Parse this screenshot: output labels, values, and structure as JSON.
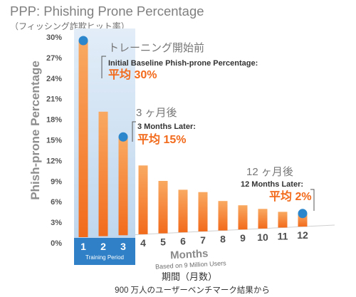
{
  "colors": {
    "bar_top": "#f9a962",
    "bar_bottom": "#f26b1c",
    "marker": "#2b86cc",
    "highlight_value": "#f26a1b",
    "training_band": "#2f80c6",
    "training_shade_top": "#e2edf8",
    "training_shade_bottom": "#bfd7ee"
  },
  "chart_data": {
    "type": "bar",
    "title": "PPP: Phishing Prone Percentage",
    "subtitle": "（フィッシング詐欺ヒット率）",
    "ylabel": "Phish-prone Percentage",
    "xlabel": "Months",
    "xlabel_note": "Based on 9 Million Users",
    "xlabel_ja": "期間（月数）",
    "xlabel_ja_note": "900 万人のユーザーベンチマーク結果から",
    "categories": [
      "1",
      "2",
      "3",
      "4",
      "5",
      "6",
      "7",
      "8",
      "9",
      "10",
      "11",
      "12"
    ],
    "values": [
      30,
      19,
      15,
      10.5,
      8,
      6.5,
      6,
      4.5,
      3.7,
      3,
      2.4,
      2
    ],
    "value_unit": "%",
    "ylim": [
      0,
      30
    ],
    "yticks": [
      0,
      3,
      6,
      9,
      12,
      15,
      18,
      21,
      24,
      27,
      30
    ],
    "grid": false,
    "highlight_region": {
      "categories": [
        "1",
        "2",
        "3"
      ],
      "label": "Training Period"
    },
    "annotations": [
      {
        "category": "1",
        "heading_ja": "トレーニング開始前",
        "heading": "Initial Baseline Phish-prone Percentage:",
        "value_text": "平均 30%"
      },
      {
        "category": "3",
        "heading_ja": "3 ヶ月後",
        "heading": "3 Months Later:",
        "value_text": "平均 15%"
      },
      {
        "category": "12",
        "heading_ja": "12 ヶ月後",
        "heading": "12 Months Later:",
        "value_text": "平均 2%"
      }
    ]
  }
}
